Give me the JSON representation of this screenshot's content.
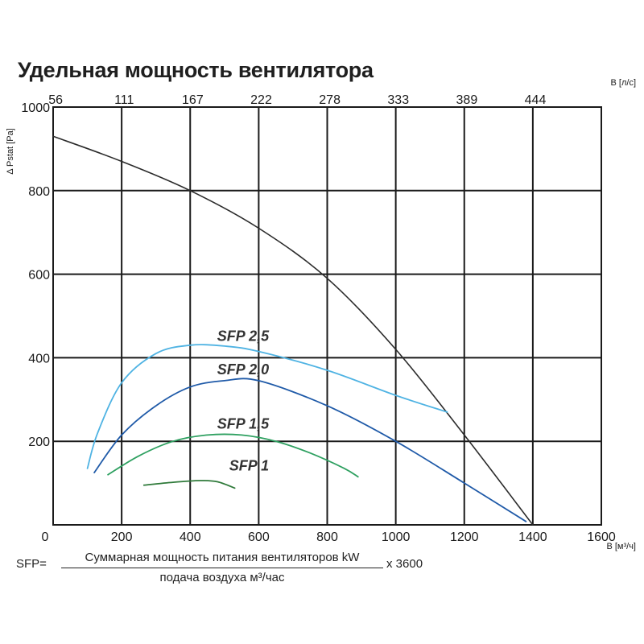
{
  "title": "Удельная мощность вентилятора",
  "formula": {
    "lhs": "SFP=",
    "numerator": "Суммарная мощность питания вентиляторов kW",
    "denominator": "подача воздуха м³/час",
    "multiplier": "x 3600"
  },
  "chart_data": {
    "type": "line",
    "title": "Удельная мощность вентилятора",
    "xlabel": "B [м³/ч]",
    "x2label": "B [л/с]",
    "ylabel": "Δ Pstat [Pa]",
    "xlim": [
      0,
      1600
    ],
    "ylim": [
      0,
      1000
    ],
    "x_ticks": [
      0,
      200,
      400,
      600,
      800,
      1000,
      1200,
      1400,
      1600
    ],
    "y_ticks": [
      0,
      200,
      400,
      600,
      800,
      1000
    ],
    "x2_ticks": [
      {
        "at": 200,
        "label": "56"
      },
      {
        "at": 400,
        "label": "111"
      },
      {
        "at": 600,
        "label": "167"
      },
      {
        "at": 800,
        "label": "222"
      },
      {
        "at": 1000,
        "label": "278"
      },
      {
        "at": 1200,
        "label": "333"
      },
      {
        "at": 1400,
        "label": "389"
      },
      {
        "at": 1600,
        "label": "444"
      }
    ],
    "grid": true,
    "series": [
      {
        "id": "fan",
        "color": "#2b2b2b",
        "x": [
          0,
          200,
          400,
          600,
          800,
          1000,
          1200,
          1400
        ],
        "y": [
          930,
          870,
          800,
          710,
          590,
          420,
          215,
          0
        ]
      },
      {
        "id": "sfp25",
        "name": "SFP 2,5",
        "color": "#4fb3e3",
        "label_at": [
          630,
          440
        ],
        "x": [
          100,
          130,
          200,
          300,
          400,
          500,
          600,
          800,
          1000,
          1150
        ],
        "y": [
          135,
          220,
          340,
          410,
          430,
          428,
          415,
          370,
          310,
          270
        ]
      },
      {
        "id": "sfp20",
        "name": "SFP 2,0",
        "color": "#1f5aa8",
        "label_at": [
          630,
          360
        ],
        "x": [
          120,
          200,
          300,
          400,
          500,
          600,
          800,
          1000,
          1200,
          1380
        ],
        "y": [
          125,
          215,
          285,
          330,
          345,
          345,
          285,
          200,
          100,
          8
        ]
      },
      {
        "id": "sfp15",
        "name": "SFP 1,5",
        "color": "#2ea060",
        "label_at": [
          630,
          230
        ],
        "x": [
          160,
          250,
          350,
          450,
          550,
          650,
          750,
          850,
          890
        ],
        "y": [
          120,
          165,
          200,
          215,
          215,
          200,
          172,
          135,
          115
        ]
      },
      {
        "id": "sfp1",
        "name": "SFP 1",
        "color": "#2f7a3a",
        "label_at": [
          630,
          130
        ],
        "x": [
          265,
          350,
          430,
          480,
          530
        ],
        "y": [
          95,
          102,
          106,
          103,
          88
        ]
      }
    ]
  }
}
